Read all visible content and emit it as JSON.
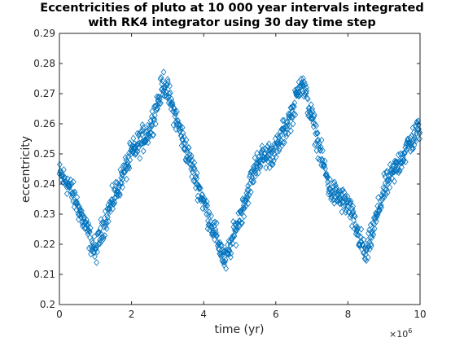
{
  "chart_data": {
    "type": "scatter",
    "title_line1": "Eccentricities of pluto at 10 000 year intervals integrated",
    "title_line2": "with RK4 integrator using 30 day time step",
    "xlabel": "time (yr)",
    "ylabel": "eccentricity",
    "x_exponent_base": "×10",
    "x_exponent_power": "6",
    "xlim": [
      0,
      10000000
    ],
    "ylim": [
      0.2,
      0.29
    ],
    "x_ticks": [
      0,
      2000000,
      4000000,
      6000000,
      8000000,
      10000000
    ],
    "x_tick_labels": [
      "0",
      "2",
      "4",
      "6",
      "8",
      "10"
    ],
    "y_ticks": [
      0.2,
      0.21,
      0.22,
      0.23,
      0.24,
      0.25,
      0.26,
      0.27,
      0.28,
      0.29
    ],
    "y_tick_labels": [
      "0.2",
      "0.21",
      "0.22",
      "0.23",
      "0.24",
      "0.25",
      "0.26",
      "0.27",
      "0.28",
      "0.29"
    ],
    "grid": false,
    "marker": "diamond",
    "marker_color": "#0072bd",
    "x_step": 10000,
    "x_start": 0,
    "x_end": 10000000,
    "series_trend": {
      "x": [
        0,
        200000,
        500000,
        1000000,
        1200000,
        2000000,
        2500000,
        2900000,
        3500000,
        4000000,
        4600000,
        5000000,
        5500000,
        6000000,
        6500000,
        6700000,
        7000000,
        7500000,
        8000000,
        8500000,
        9000000,
        9500000,
        10000000
      ],
      "y": [
        0.243,
        0.241,
        0.233,
        0.217,
        0.226,
        0.25,
        0.258,
        0.274,
        0.252,
        0.234,
        0.214,
        0.229,
        0.248,
        0.251,
        0.265,
        0.275,
        0.262,
        0.238,
        0.233,
        0.216,
        0.238,
        0.249,
        0.259
      ]
    },
    "scatter_amplitude": 0.004
  }
}
